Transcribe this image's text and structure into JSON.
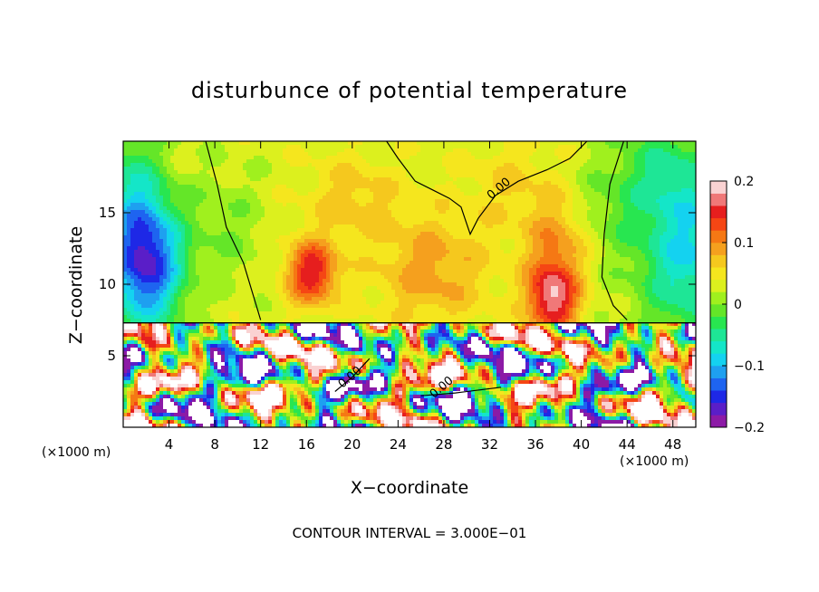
{
  "chart_data": {
    "type": "heatmap",
    "title": "disturbunce of potential temperature",
    "xlabel": "X−coordinate",
    "ylabel": "Z−coordinate",
    "x_unit": "(×1000 m)",
    "y_unit": "(×1000 m)",
    "xlim": [
      0,
      50
    ],
    "ylim": [
      0,
      20
    ],
    "x_ticks": [
      4,
      8,
      12,
      16,
      20,
      24,
      28,
      32,
      36,
      40,
      44,
      48
    ],
    "y_ticks": [
      5,
      10,
      15
    ],
    "colorbar": {
      "min": -0.2,
      "max": 0.2,
      "ticks": [
        0.2,
        0.1,
        0,
        -0.1,
        -0.2
      ],
      "tick_labels": [
        "0.2",
        "0.1",
        "0",
        "−0.1",
        "−0.2"
      ],
      "colors": [
        "#8c1aa6",
        "#5a1ec8",
        "#1e28e6",
        "#1e64f0",
        "#1ea0f0",
        "#14d2f0",
        "#14e6c8",
        "#1ee696",
        "#28e650",
        "#64e628",
        "#a0f01e",
        "#dcf01e",
        "#f5e61e",
        "#f5c81e",
        "#f5a01e",
        "#f57814",
        "#f54614",
        "#e61e1e",
        "#f07878",
        "#fad2d2"
      ]
    },
    "contour_labels": [
      "0.00",
      "0.00",
      "0.00"
    ],
    "contour_interval_text": "CONTOUR INTERVAL = 3.000E−01",
    "upper_layer_field": {
      "boundary_z": 7.3,
      "background": 0.03,
      "features": [
        {
          "x": 2,
          "z": 11.5,
          "amp": -0.19,
          "sx": 3.2,
          "sz": 4.5
        },
        {
          "x": 0.5,
          "z": 17,
          "amp": -0.06,
          "sx": 3,
          "sz": 5
        },
        {
          "x": 49.5,
          "z": 12,
          "amp": -0.11,
          "sx": 4.5,
          "sz": 6
        },
        {
          "x": 47,
          "z": 18,
          "amp": -0.05,
          "sx": 4,
          "sz": 4
        },
        {
          "x": 16.5,
          "z": 10.8,
          "amp": 0.13,
          "sx": 2.2,
          "sz": 2.2
        },
        {
          "x": 37.5,
          "z": 9,
          "amp": 0.15,
          "sx": 2.2,
          "sz": 2.5
        },
        {
          "x": 38,
          "z": 13,
          "amp": 0.06,
          "sx": 3,
          "sz": 3
        },
        {
          "x": 27,
          "z": 11,
          "amp": 0.06,
          "sx": 5,
          "sz": 4
        },
        {
          "x": 20,
          "z": 16,
          "amp": 0.04,
          "sx": 4,
          "sz": 3
        },
        {
          "x": 34,
          "z": 17,
          "amp": 0.03,
          "sx": 4,
          "sz": 3
        },
        {
          "x": 9,
          "z": 14,
          "amp": -0.03,
          "sx": 3,
          "sz": 4
        },
        {
          "x": 42,
          "z": 15,
          "amp": -0.03,
          "sx": 3,
          "sz": 4
        }
      ]
    },
    "zero_contours": [
      {
        "label_at": [
          33,
          16.5
        ],
        "points": [
          [
            23,
            20
          ],
          [
            24,
            18.8
          ],
          [
            25.5,
            17.2
          ],
          [
            27,
            16.6
          ],
          [
            28.5,
            16.0
          ],
          [
            29.5,
            15.4
          ],
          [
            30.3,
            13.5
          ],
          [
            31,
            14.6
          ],
          [
            32.5,
            16.2
          ],
          [
            34.5,
            17.2
          ],
          [
            37,
            18.0
          ],
          [
            39,
            18.8
          ],
          [
            40.5,
            20
          ]
        ]
      },
      {
        "points": [
          [
            7.2,
            20
          ],
          [
            8.2,
            17
          ],
          [
            9,
            14
          ],
          [
            10.5,
            11.5
          ],
          [
            12,
            7.5
          ]
        ]
      },
      {
        "points": [
          [
            43.7,
            20
          ],
          [
            42.5,
            17
          ],
          [
            42,
            13.5
          ],
          [
            41.8,
            10.5
          ],
          [
            42.8,
            8.5
          ],
          [
            44,
            7.5
          ]
        ]
      },
      {
        "label_at": [
          28,
          2.6
        ],
        "points": [
          [
            26,
            2.2
          ],
          [
            29,
            2.4
          ],
          [
            33,
            2.8
          ]
        ]
      },
      {
        "label_at": [
          20,
          3.3
        ],
        "points": [
          [
            18.5,
            2.5
          ],
          [
            20,
            3.5
          ],
          [
            21.5,
            4.8
          ]
        ]
      }
    ]
  }
}
